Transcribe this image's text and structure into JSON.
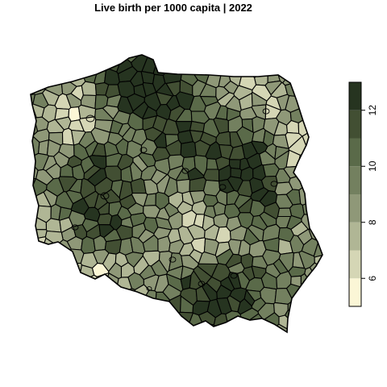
{
  "title": "Live birth per 1000 capita | 2022",
  "legend": {
    "breaks": [
      5,
      6,
      7,
      8,
      9,
      10,
      11,
      12,
      13
    ],
    "colors": [
      "#fbf6d6",
      "#d5d6b5",
      "#b0b695",
      "#8f9878",
      "#73805f",
      "#5a6a49",
      "#424f33",
      "#263420"
    ],
    "ticks": [
      6,
      8,
      10,
      12
    ],
    "tick_labels": [
      "6",
      "8",
      "10",
      "12"
    ],
    "orientation": "vertical",
    "placement": "right"
  },
  "map": {
    "country": "Poland",
    "unit": "powiat",
    "variable": "Live birth per 1000 capita",
    "year": "2022",
    "range": [
      5,
      13
    ]
  }
}
